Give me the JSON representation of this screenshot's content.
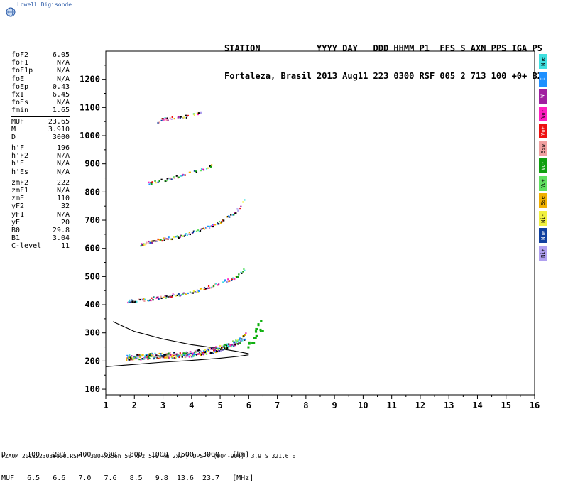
{
  "app_label": "Lowell Digisonde",
  "header": {
    "line1": "STATION           YYYY DAY   DDD HHMM P1  FFS S AXN PPS IGA PS",
    "line2": "Fortaleza, Brasil 2013 Aug11 223 0300 RSF 005 2 713 100 +0+ B2"
  },
  "params": {
    "group1": [
      {
        "label": "foF2",
        "value": "6.05"
      },
      {
        "label": "foF1",
        "value": "N/A"
      },
      {
        "label": "foF1p",
        "value": "N/A"
      },
      {
        "label": "foE",
        "value": "N/A"
      },
      {
        "label": "foEp",
        "value": "0.43"
      },
      {
        "label": "fxI",
        "value": "6.45"
      },
      {
        "label": "foEs",
        "value": "N/A"
      },
      {
        "label": "fmin",
        "value": "1.65"
      }
    ],
    "group2": [
      {
        "label": "MUF",
        "value": "23.65"
      },
      {
        "label": "M",
        "value": "3.910"
      },
      {
        "label": "D",
        "value": "3000"
      }
    ],
    "group3": [
      {
        "label": "h'F",
        "value": "196"
      },
      {
        "label": "h'F2",
        "value": "N/A"
      },
      {
        "label": "h'E",
        "value": "N/A"
      },
      {
        "label": "h'Es",
        "value": "N/A"
      }
    ],
    "group4": [
      {
        "label": "zmF2",
        "value": "222"
      },
      {
        "label": "zmF1",
        "value": "N/A"
      },
      {
        "label": "zmE",
        "value": "110"
      },
      {
        "label": "yF2",
        "value": "32"
      },
      {
        "label": "yF1",
        "value": "N/A"
      },
      {
        "label": "yE",
        "value": "20"
      },
      {
        "label": "B0",
        "value": "29.8"
      },
      {
        "label": "B1",
        "value": "3.04"
      },
      {
        "label": "C-level",
        "value": "11"
      }
    ]
  },
  "legend": [
    {
      "label": "Nne",
      "color": "#3fe0e0"
    },
    {
      "label": "E",
      "color": "#1e90ff"
    },
    {
      "label": "W",
      "color": "#a020a0"
    },
    {
      "label": "Vo-",
      "color": "#ff20c0"
    },
    {
      "label": "Vo+",
      "color": "#ee1010"
    },
    {
      "label": "Ssw",
      "color": "#f0a0a0"
    },
    {
      "label": "Vo-",
      "color": "#10a010"
    },
    {
      "label": "Vo+",
      "color": "#60e060"
    },
    {
      "label": "Sse",
      "color": "#f0b000"
    },
    {
      "label": "Ni-",
      "color": "#f0f040"
    },
    {
      "label": "Nnw",
      "color": "#1040a0"
    },
    {
      "label": "Ni+",
      "color": "#b0a0f0"
    }
  ],
  "muf_table": {
    "line1": "D     100   200   400   600   800  1000  1500  3000   [km]",
    "line2": "MUF   6.5   6.6   7.0   7.6   8.5   9.8  13.6  23.7   [MHz]"
  },
  "footer": "FZA0M_2013223030000.RSF / 300+x256h 50 kHz 5.0 km 2x2 / DPS-4 (904-904)  3.9 S 321.6 E",
  "chart_data": {
    "type": "scatter",
    "xlim": [
      1,
      16
    ],
    "ylim": [
      80,
      1300
    ],
    "xticks": [
      "1",
      "2",
      "3",
      "4",
      "5",
      "6",
      "7",
      "8",
      "9",
      "10",
      "11",
      "12",
      "13",
      "14",
      "15",
      "16"
    ],
    "yticks": [
      "100",
      "200",
      "300",
      "400",
      "500",
      "600",
      "700",
      "800",
      "900",
      "1000",
      "1100",
      "1200"
    ],
    "grid": false,
    "traces": [
      {
        "name": "F-layer 1st hop",
        "points": [
          [
            1.7,
            210
          ],
          [
            2.0,
            212
          ],
          [
            2.5,
            215
          ],
          [
            3.0,
            218
          ],
          [
            3.5,
            220
          ],
          [
            4.0,
            224
          ],
          [
            4.5,
            232
          ],
          [
            5.0,
            244
          ],
          [
            5.4,
            258
          ],
          [
            5.7,
            272
          ],
          [
            5.9,
            290
          ]
        ]
      },
      {
        "name": "2nd hop",
        "points": [
          [
            1.75,
            412
          ],
          [
            2.0,
            414
          ],
          [
            2.5,
            420
          ],
          [
            3.0,
            428
          ],
          [
            3.5,
            436
          ],
          [
            4.0,
            444
          ],
          [
            4.5,
            460
          ],
          [
            5.0,
            478
          ],
          [
            5.4,
            492
          ],
          [
            5.7,
            510
          ],
          [
            5.85,
            530
          ]
        ]
      },
      {
        "name": "3rd hop",
        "points": [
          [
            2.2,
            612
          ],
          [
            2.6,
            624
          ],
          [
            3.0,
            632
          ],
          [
            3.5,
            642
          ],
          [
            4.0,
            656
          ],
          [
            4.5,
            672
          ],
          [
            5.0,
            696
          ],
          [
            5.4,
            718
          ],
          [
            5.7,
            748
          ],
          [
            5.85,
            780
          ]
        ]
      },
      {
        "name": "4th hop",
        "points": [
          [
            2.45,
            830
          ],
          [
            2.8,
            838
          ],
          [
            3.2,
            848
          ],
          [
            3.6,
            858
          ],
          [
            4.0,
            870
          ],
          [
            4.4,
            882
          ],
          [
            4.7,
            898
          ]
        ]
      },
      {
        "name": "5th hop",
        "points": [
          [
            2.8,
            1050
          ],
          [
            3.0,
            1058
          ],
          [
            3.5,
            1064
          ],
          [
            4.0,
            1072
          ],
          [
            4.3,
            1080
          ]
        ]
      },
      {
        "name": "extraordinary",
        "points": [
          [
            6.0,
            262
          ],
          [
            6.1,
            275
          ],
          [
            6.2,
            292
          ],
          [
            6.25,
            308
          ],
          [
            6.3,
            325
          ],
          [
            6.35,
            340
          ],
          [
            6.42,
            318
          ]
        ]
      }
    ],
    "model_curves": [
      {
        "name": "upper",
        "points": [
          [
            1.25,
            340
          ],
          [
            2.0,
            305
          ],
          [
            3.0,
            278
          ],
          [
            4.0,
            258
          ],
          [
            5.0,
            244
          ],
          [
            5.6,
            234
          ],
          [
            6.0,
            226
          ]
        ]
      },
      {
        "name": "lower",
        "points": [
          [
            1.0,
            180
          ],
          [
            2.0,
            188
          ],
          [
            3.0,
            196
          ],
          [
            4.0,
            202
          ],
          [
            5.0,
            210
          ],
          [
            5.6,
            216
          ],
          [
            6.0,
            222
          ]
        ]
      }
    ]
  }
}
